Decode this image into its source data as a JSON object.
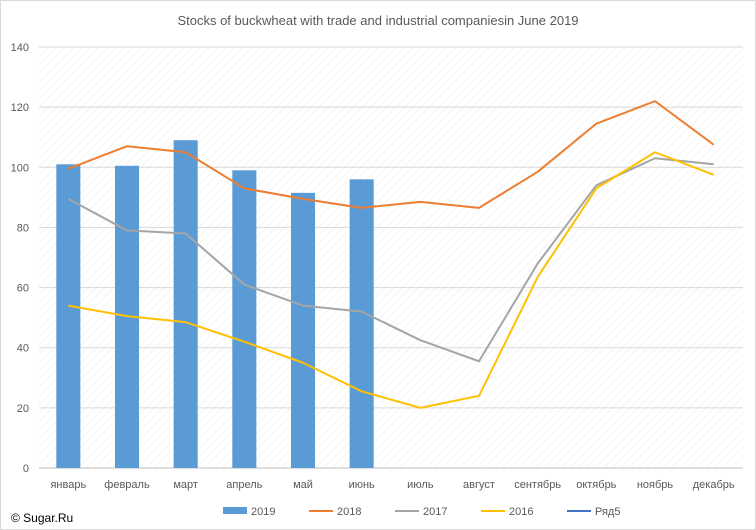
{
  "chart_data": {
    "type": "bar",
    "title": "Stocks of buckwheat with trade and industrial companiesin June 2019",
    "categories": [
      "январь",
      "февраль",
      "март",
      "апрель",
      "май",
      "июнь",
      "июль",
      "август",
      "сентябрь",
      "октябрь",
      "ноябрь",
      "декабрь"
    ],
    "ylim": [
      0,
      140
    ],
    "yticks": [
      0,
      20,
      40,
      60,
      80,
      100,
      120,
      140
    ],
    "grid": true,
    "legend_position": "bottom",
    "series": [
      {
        "name": "2019",
        "kind": "bar",
        "color": "#5b9bd5",
        "values": [
          101,
          100.5,
          109,
          99,
          91.5,
          96,
          null,
          null,
          null,
          null,
          null,
          null
        ]
      },
      {
        "name": "2018",
        "kind": "line",
        "color": "#ed7d31",
        "values": [
          99.5,
          107,
          105,
          93,
          89.5,
          86.5,
          88.5,
          86.5,
          98.5,
          114.5,
          122,
          107.5
        ]
      },
      {
        "name": "2017",
        "kind": "line",
        "color": "#a5a5a5",
        "values": [
          89.5,
          79,
          78,
          61,
          54,
          52,
          42.5,
          35.5,
          68,
          94,
          103,
          101
        ]
      },
      {
        "name": "2016",
        "kind": "line",
        "color": "#ffc000",
        "values": [
          54,
          50.5,
          48.5,
          42,
          35,
          25.5,
          20,
          24,
          63.5,
          93,
          105,
          97.5
        ]
      },
      {
        "name": "Ряд5",
        "kind": "line",
        "color": "#4472c4",
        "values": [
          null,
          null,
          null,
          null,
          null,
          null,
          null,
          null,
          null,
          null,
          null,
          null
        ]
      }
    ]
  },
  "copyright": "© Sugar.Ru"
}
